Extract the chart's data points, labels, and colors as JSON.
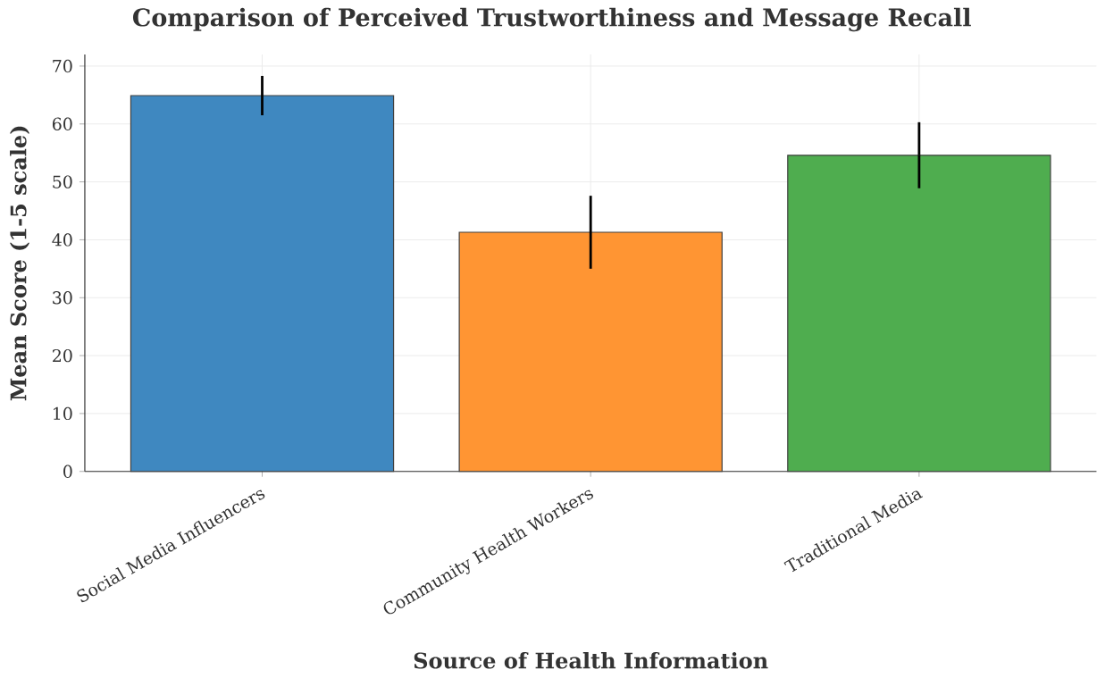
{
  "chart_data": {
    "type": "bar",
    "title": "Comparison of Perceived Trustworthiness and Message Recall",
    "xlabel": "Source of Health Information",
    "ylabel": "Mean Score (1-5 scale)",
    "categories": [
      "Social Media Influencers",
      "Community Health Workers",
      "Traditional Media"
    ],
    "values": [
      64.9,
      41.3,
      54.6
    ],
    "errors": [
      3.4,
      6.3,
      5.7
    ],
    "colors": [
      "#3f88c0",
      "#ff9533",
      "#4fad4f"
    ],
    "ylim": [
      0,
      72
    ],
    "yticks": [
      0,
      10,
      20,
      30,
      40,
      50,
      60,
      70
    ],
    "grid": true
  }
}
